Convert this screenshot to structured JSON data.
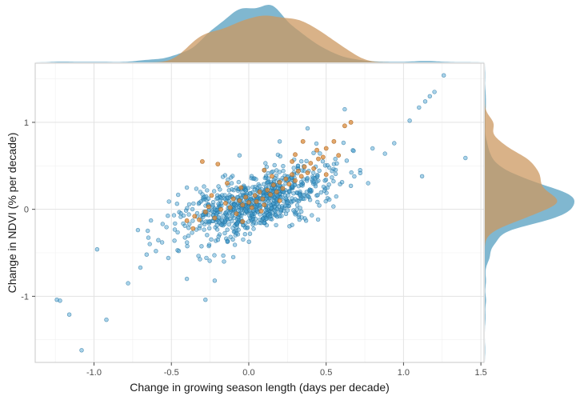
{
  "chart_data": {
    "type": "scatter",
    "xlabel": "Change in growing season length (days per decade)",
    "ylabel": "Change in NDVI (% per decade)",
    "xlim": [
      -1.38,
      1.52
    ],
    "ylim": [
      -1.76,
      1.68
    ],
    "x_ticks": [
      -1.0,
      -0.5,
      0.0,
      0.5,
      1.0,
      1.5
    ],
    "x_tick_labels": [
      "-1.0",
      "-0.5",
      "0.0",
      "0.5",
      "1.0",
      "1.5"
    ],
    "y_ticks": [
      -1,
      0,
      1
    ],
    "y_tick_labels": [
      "-1",
      "0",
      "1"
    ],
    "grid": true,
    "marginal_density": {
      "top": true,
      "right": true
    },
    "colors": {
      "blue": "#3d9bcf",
      "orange": "#d98a3a",
      "blue_fill": "#6aaac8",
      "orange_fill": "#cc9860",
      "overlap_fill": "#8e7a62"
    },
    "series": [
      {
        "color": "#3d9bcf",
        "outliers": [
          [
            -1.24,
            -1.04
          ],
          [
            -1.22,
            -1.05
          ],
          [
            -1.16,
            -1.21
          ],
          [
            -1.08,
            -1.62
          ],
          [
            -0.98,
            -0.46
          ],
          [
            -0.92,
            -1.27
          ],
          [
            -0.78,
            -0.85
          ],
          [
            -0.7,
            -0.67
          ],
          [
            -0.66,
            -0.52
          ],
          [
            -0.64,
            -0.4
          ],
          [
            -0.6,
            -0.48
          ],
          [
            -0.56,
            -0.38
          ],
          [
            -0.52,
            -0.56
          ],
          [
            -0.46,
            -0.47
          ],
          [
            -0.4,
            -0.8
          ],
          [
            -0.28,
            -1.04
          ],
          [
            -0.22,
            -0.82
          ],
          [
            -0.16,
            -0.6
          ],
          [
            0.28,
            -0.18
          ],
          [
            0.44,
            0.37
          ],
          [
            0.52,
            0.48
          ],
          [
            0.66,
            0.27
          ],
          [
            0.72,
            0.45
          ],
          [
            0.8,
            0.7
          ],
          [
            0.88,
            0.64
          ],
          [
            0.94,
            0.76
          ],
          [
            1.04,
            1.02
          ],
          [
            1.1,
            1.17
          ],
          [
            1.14,
            1.24
          ],
          [
            1.17,
            1.3
          ],
          [
            1.2,
            1.35
          ],
          [
            1.26,
            1.54
          ],
          [
            1.4,
            0.59
          ],
          [
            1.12,
            0.38
          ],
          [
            0.62,
            1.15
          ],
          [
            0.38,
            0.93
          ],
          [
            0.2,
            0.78
          ],
          [
            -0.06,
            0.62
          ],
          [
            -0.4,
            0.25
          ],
          [
            -0.1,
            -0.55
          ]
        ],
        "cluster": {
          "n": 780,
          "center_x": 0.04,
          "center_y": 0.07,
          "sd_major": 0.3,
          "sd_minor": 0.14,
          "angle_deg": 39
        }
      },
      {
        "color": "#d98a3a",
        "points": [
          [
            -0.4,
            -0.13
          ],
          [
            -0.35,
            -0.08
          ],
          [
            -0.32,
            -0.12
          ],
          [
            -0.28,
            -0.03
          ],
          [
            -0.26,
            0.03
          ],
          [
            -0.22,
            -0.1
          ],
          [
            -0.18,
            0.0
          ],
          [
            -0.15,
            0.07
          ],
          [
            -0.12,
            0.02
          ],
          [
            -0.1,
            0.12
          ],
          [
            -0.08,
            -0.05
          ],
          [
            -0.06,
            0.1
          ],
          [
            -0.04,
            0.05
          ],
          [
            -0.02,
            0.14
          ],
          [
            0.0,
            0.08
          ],
          [
            0.02,
            0.02
          ],
          [
            0.04,
            0.16
          ],
          [
            0.05,
            0.09
          ],
          [
            0.07,
            0.2
          ],
          [
            0.09,
            0.12
          ],
          [
            0.1,
            0.05
          ],
          [
            0.12,
            0.22
          ],
          [
            0.14,
            0.17
          ],
          [
            0.16,
            0.28
          ],
          [
            0.18,
            0.2
          ],
          [
            0.2,
            0.31
          ],
          [
            0.22,
            0.24
          ],
          [
            0.24,
            0.35
          ],
          [
            0.26,
            0.29
          ],
          [
            0.28,
            0.4
          ],
          [
            0.3,
            0.33
          ],
          [
            0.32,
            0.44
          ],
          [
            0.34,
            0.38
          ],
          [
            0.36,
            0.49
          ],
          [
            0.38,
            0.42
          ],
          [
            0.4,
            0.53
          ],
          [
            0.42,
            0.47
          ],
          [
            0.45,
            0.58
          ],
          [
            0.48,
            0.6
          ],
          [
            0.5,
            0.7
          ],
          [
            0.55,
            0.78
          ],
          [
            0.58,
            0.62
          ],
          [
            0.62,
            0.96
          ],
          [
            0.66,
            1.0
          ],
          [
            0.35,
            0.78
          ],
          [
            0.3,
            0.63
          ],
          [
            -0.3,
            0.55
          ],
          [
            -0.2,
            0.52
          ],
          [
            0.1,
            0.45
          ],
          [
            -0.14,
            0.3
          ],
          [
            -0.36,
            -0.22
          ],
          [
            -0.04,
            -0.14
          ],
          [
            0.08,
            -0.02
          ],
          [
            0.2,
            0.1
          ],
          [
            0.5,
            0.4
          ],
          [
            -0.24,
            0.16
          ],
          [
            0.44,
            0.68
          ],
          [
            0.28,
            0.55
          ],
          [
            0.15,
            0.38
          ],
          [
            -0.05,
            0.25
          ]
        ]
      }
    ]
  }
}
